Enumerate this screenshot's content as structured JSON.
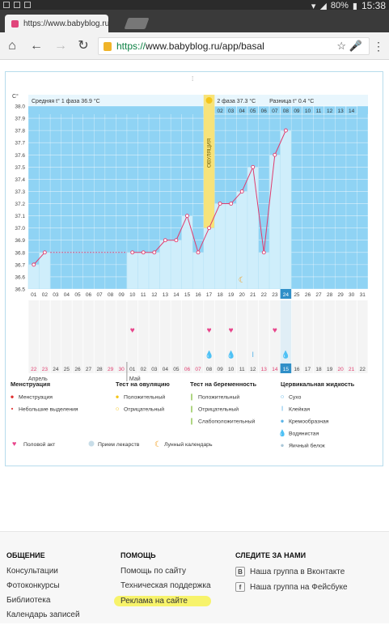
{
  "statusbar": {
    "battery": "80%",
    "time": "15:38"
  },
  "browser": {
    "tab_title": "https://www.babyblog.ru/ap",
    "tab_close": "×",
    "url_https": "https://",
    "url_rest": "www.babyblog.ru/app/basal"
  },
  "chart": {
    "unit_label": "C°",
    "phase1_label": "Средняя t° 1 фаза",
    "phase1_value": "36.9 °C",
    "phase2_label": "2 фаза",
    "phase2_value": "37.3 °C",
    "diff_label": "Разница t°",
    "diff_value": "0.4 °C",
    "ovulation_label": "ОВУЛЯЦИЯ",
    "month_april": "Апрель",
    "month_may": "Май",
    "highlighted_day": "24",
    "highlighted_cycle_day": "15"
  },
  "chart_data": {
    "type": "line",
    "ylim": [
      36.5,
      38.0
    ],
    "yticks": [
      "38.0",
      "37.9",
      "37.8",
      "37.7",
      "37.6",
      "37.5",
      "37.4",
      "37.3",
      "37.2",
      "37.1",
      "37.0",
      "36.9",
      "36.8",
      "36.7",
      "36.6",
      "36.5"
    ],
    "x_days": [
      "01",
      "02",
      "03",
      "04",
      "05",
      "06",
      "07",
      "08",
      "09",
      "10",
      "11",
      "12",
      "13",
      "14",
      "15",
      "16",
      "17",
      "18",
      "19",
      "20",
      "21",
      "22",
      "23",
      "24",
      "25",
      "26",
      "27",
      "28",
      "29",
      "30",
      "31"
    ],
    "top_days": [
      "01",
      "02",
      "03",
      "04",
      "05",
      "06",
      "07",
      "08",
      "09",
      "10",
      "11",
      "12",
      "13",
      "14"
    ],
    "cycle_days": [
      "22",
      "23",
      "24",
      "25",
      "26",
      "27",
      "28",
      "29",
      "30",
      "01",
      "02",
      "03",
      "04",
      "05",
      "06",
      "07",
      "08",
      "09",
      "10",
      "11",
      "12",
      "13",
      "14",
      "15",
      "16",
      "17",
      "18",
      "19",
      "20",
      "21",
      "22"
    ],
    "cycle_day_colors": [
      "#e03c6e",
      "#e03c6e",
      "#444",
      "#444",
      "#444",
      "#444",
      "#444",
      "#e03c6e",
      "#e03c6e",
      "#444",
      "#444",
      "#444",
      "#444",
      "#444",
      "#e03c6e",
      "#e03c6e",
      "#444",
      "#444",
      "#444",
      "#444",
      "#444",
      "#e03c6e",
      "#e03c6e",
      "#444",
      "#444",
      "#444",
      "#444",
      "#444",
      "#e03c6e",
      "#e03c6e",
      "#444"
    ],
    "temps": [
      36.7,
      36.8,
      null,
      null,
      null,
      null,
      null,
      null,
      null,
      36.8,
      36.8,
      36.8,
      36.9,
      36.9,
      37.1,
      36.8,
      37.0,
      37.2,
      37.2,
      37.3,
      37.5,
      36.8,
      37.6,
      37.8
    ],
    "coverline": 36.8,
    "ovulation_day": "17",
    "hearts_days": [
      "10",
      "17",
      "19",
      "23"
    ],
    "drop_days": [
      "17",
      "19",
      "24"
    ],
    "sticky_days": [
      "21"
    ],
    "moon_day": "20",
    "colors": {
      "plot_bg": "#8fd3f4",
      "bar": "#cfeefb",
      "line": "#e03c6e",
      "ovulation": "#f7e37a",
      "highlight": "#2f8fc8",
      "grid": "#ffffff"
    }
  },
  "legend": {
    "menstruation": {
      "title": "Менструация",
      "items": [
        "Менструация",
        "Небольшие выделения"
      ]
    },
    "ovulation_test": {
      "title": "Тест на овуляцию",
      "items": [
        "Положительный",
        "Отрицательный"
      ]
    },
    "pregnancy_test": {
      "title": "Тест на беременность",
      "items": [
        "Положительный",
        "Отрицательный",
        "Слабоположительный"
      ]
    },
    "cervical": {
      "title": "Цервикальная жидкость",
      "items": [
        "Сухо",
        "Клейкая",
        "Кремообразная",
        "Водянистая",
        "Яичный белок"
      ]
    },
    "bottom": [
      "Половой акт",
      "Прием лекарств",
      "Лунный календарь"
    ]
  },
  "footer": {
    "col1": {
      "title": "ОБЩЕНИЕ",
      "links": [
        "Консультации",
        "Фотоконкурсы",
        "Библиотека",
        "Календарь записей"
      ]
    },
    "col2": {
      "title": "ПОМОЩЬ",
      "links": [
        "Помощь по сайту",
        "Техническая поддержка",
        "Реклама на сайте"
      ]
    },
    "col3": {
      "title": "СЛЕДИТЕ ЗА НАМИ",
      "links": [
        "Наша группа в Вконтакте",
        "Наша группа на Фейсбуке"
      ],
      "icons": [
        "В",
        "f"
      ]
    }
  }
}
